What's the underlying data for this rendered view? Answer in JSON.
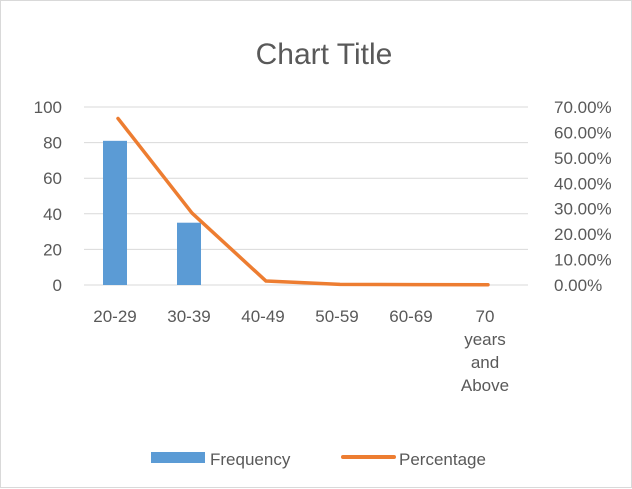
{
  "chart_data": {
    "type": "bar",
    "title": "Chart Title",
    "categories": [
      "20-29",
      "30-39",
      "40-49",
      "50-59",
      "60-69",
      "70 years and Above"
    ],
    "category_label_lines": [
      [
        "20-29"
      ],
      [
        "30-39"
      ],
      [
        "40-49"
      ],
      [
        "50-59"
      ],
      [
        "60-69"
      ],
      [
        "70",
        "years",
        "and",
        "Above"
      ]
    ],
    "series": [
      {
        "name": "Frequency",
        "type": "bar",
        "axis": "left",
        "color": "#5b9bd5",
        "values": [
          81,
          35,
          0,
          0,
          0,
          0
        ]
      },
      {
        "name": "Percentage",
        "type": "line",
        "axis": "right",
        "color": "#ed7d31",
        "values": [
          0.655,
          0.283,
          0.0155,
          0.0025,
          0.0015,
          0.001
        ]
      }
    ],
    "y_left": {
      "ylim": [
        0,
        100
      ],
      "ticks": [
        0,
        20,
        40,
        60,
        80,
        100
      ]
    },
    "y_right": {
      "ylim": [
        0,
        0.7
      ],
      "ticks": [
        "0.00%",
        "10.00%",
        "20.00%",
        "30.00%",
        "40.00%",
        "50.00%",
        "60.00%",
        "70.00%"
      ]
    },
    "grid": true,
    "legend_position": "bottom"
  }
}
